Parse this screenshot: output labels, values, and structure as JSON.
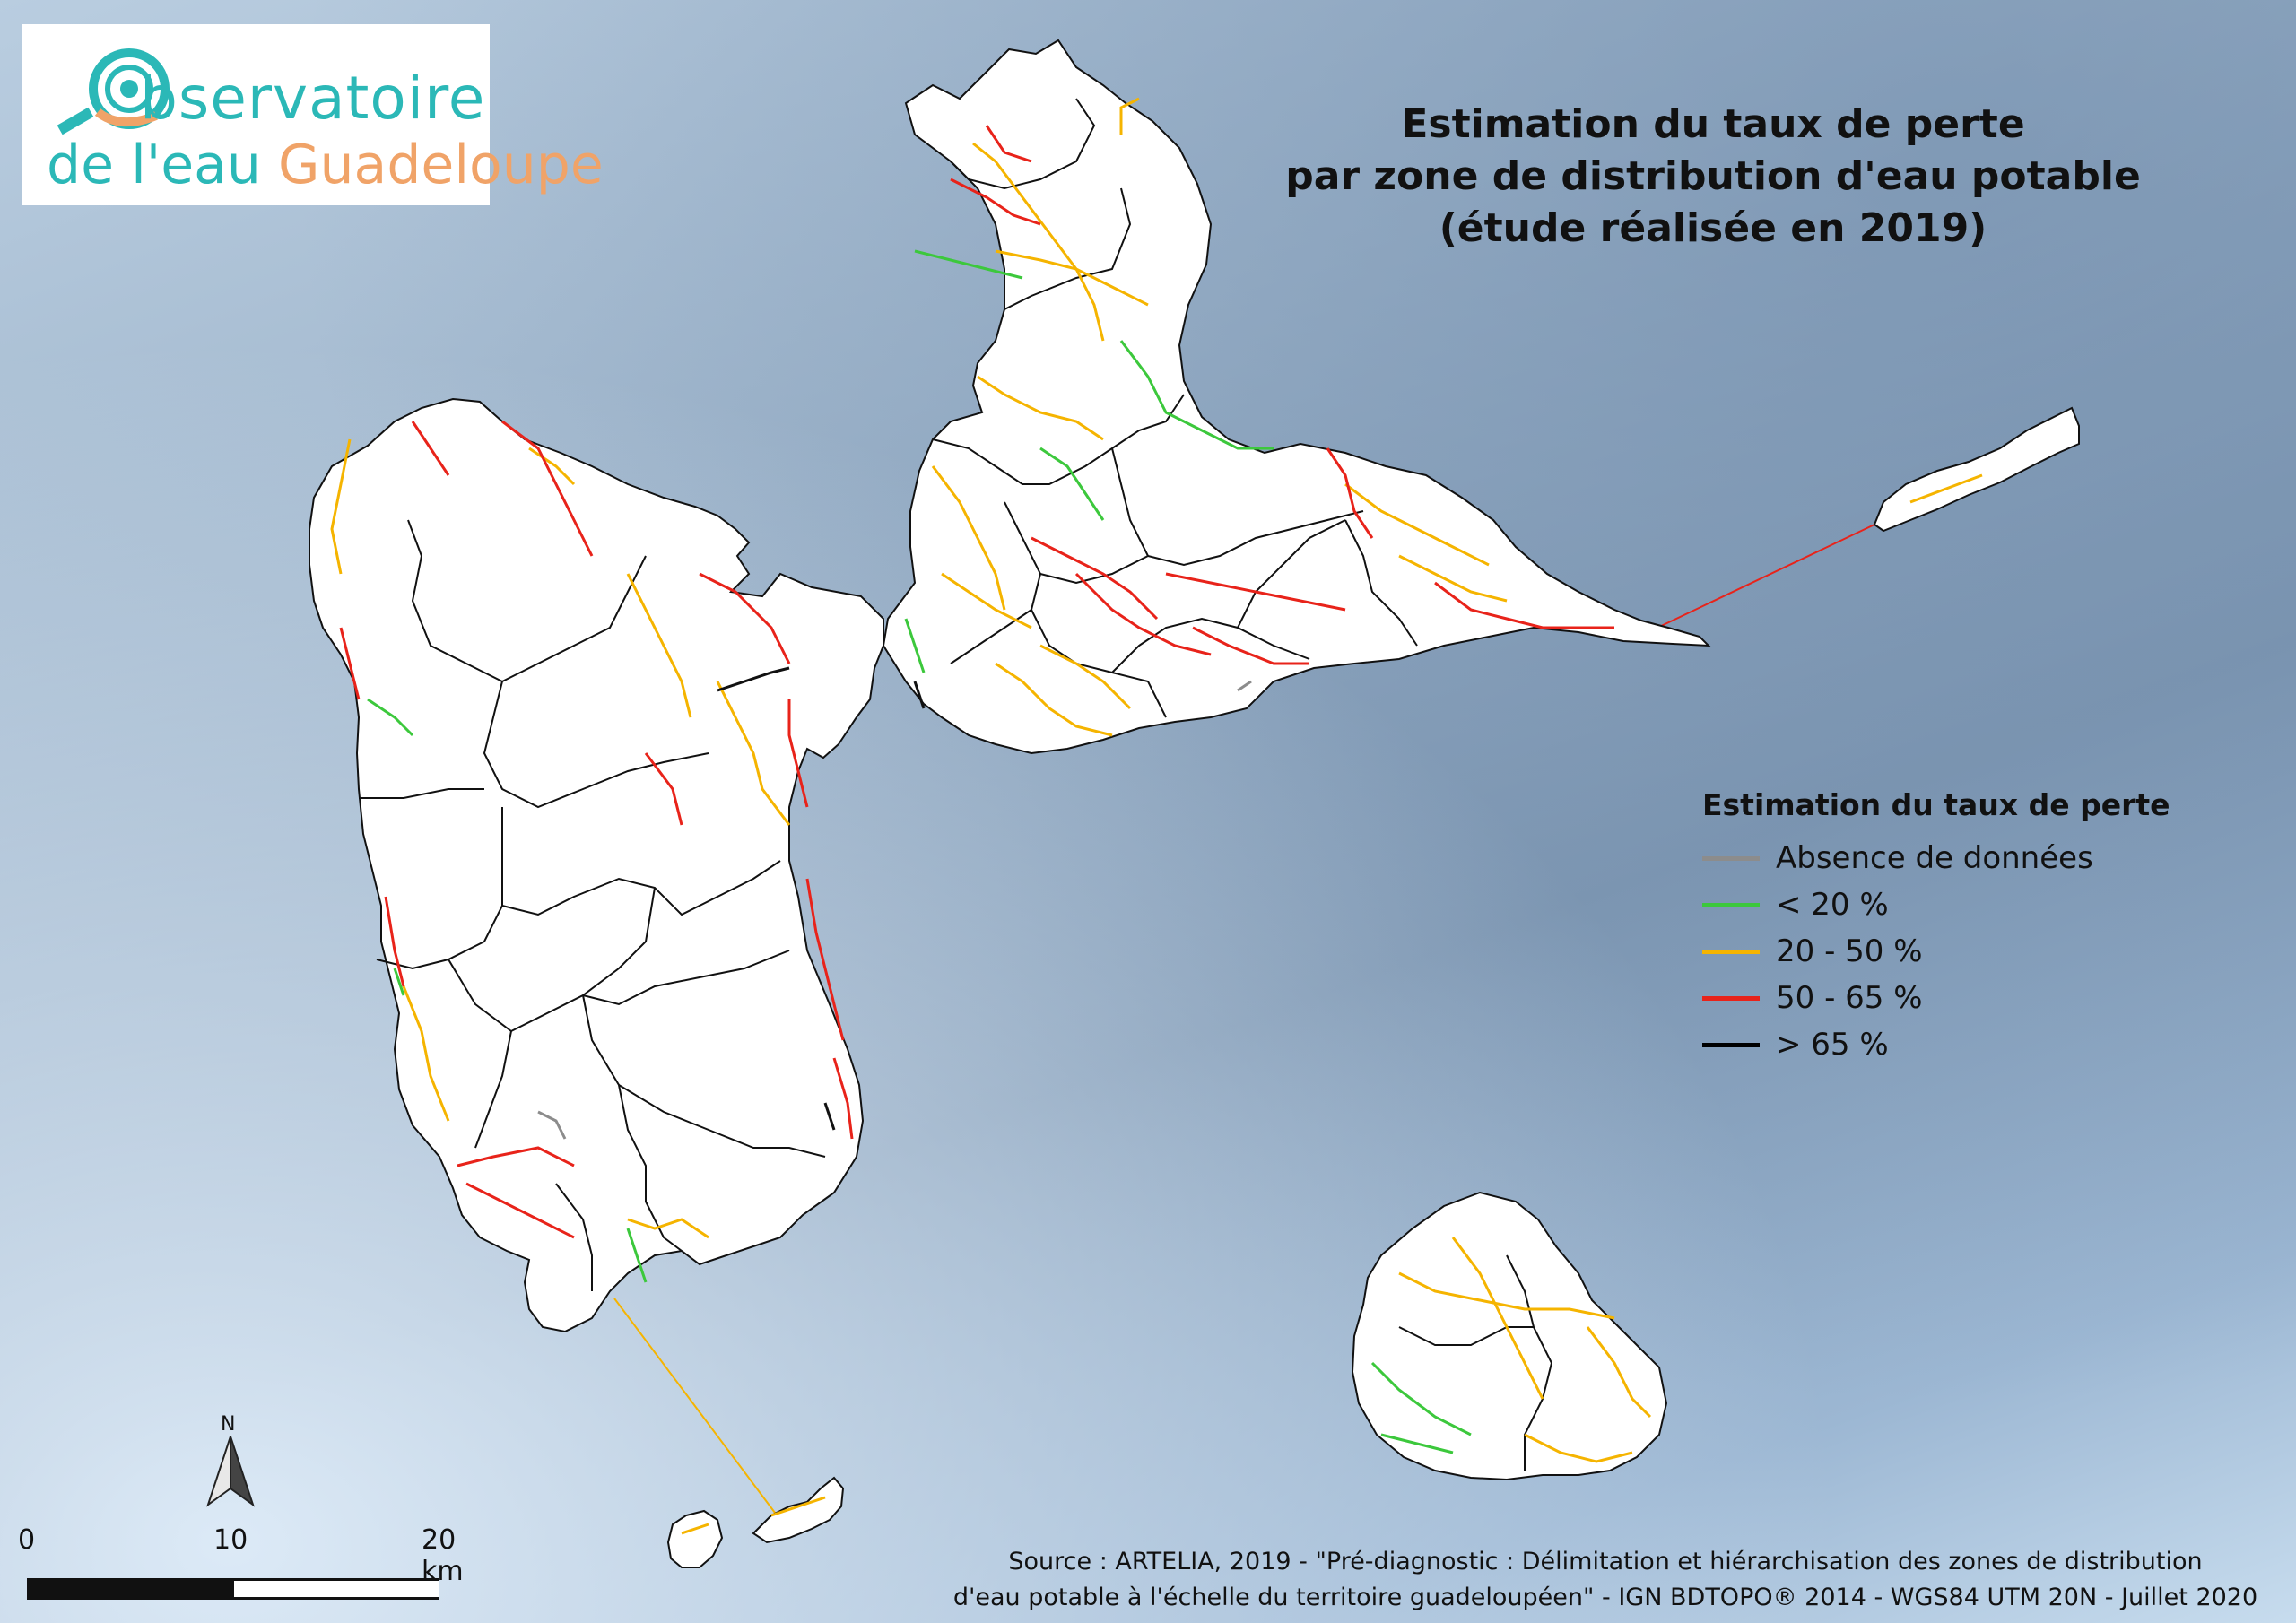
{
  "logo": {
    "line1": "bservatoire",
    "line2_part1": "de l'eau ",
    "line2_part2": "Guadeloupe",
    "colors": {
      "teal": "#2bb8b7",
      "orange": "#f0a368"
    }
  },
  "title": {
    "line1": "Estimation du taux de perte",
    "line2": "par zone de distribution d'eau potable",
    "line3": "(étude réalisée en 2019)"
  },
  "legend": {
    "title": "Estimation du taux de perte",
    "items": [
      {
        "label": "Absence de données",
        "color": "#8c8c8c"
      },
      {
        "label": "< 20 %",
        "color": "#3cc83c"
      },
      {
        "label": "20 - 50 %",
        "color": "#f5b400"
      },
      {
        "label": "50 - 65 %",
        "color": "#e8231a"
      },
      {
        "label": "> 65 %",
        "color": "#000000"
      }
    ]
  },
  "north_arrow": {
    "label": "N"
  },
  "scale_bar": {
    "labels": [
      "0",
      "10",
      "20 km"
    ]
  },
  "source": {
    "line1": "Source : ARTELIA, 2019 - \"Pré-diagnostic : Délimitation et hiérarchisation des zones de distribution",
    "line2": "d'eau potable à l'échelle du territoire guadeloupéen\" - IGN BDTOPO® 2014 - WGS84 UTM 20N - Juillet 2020"
  }
}
